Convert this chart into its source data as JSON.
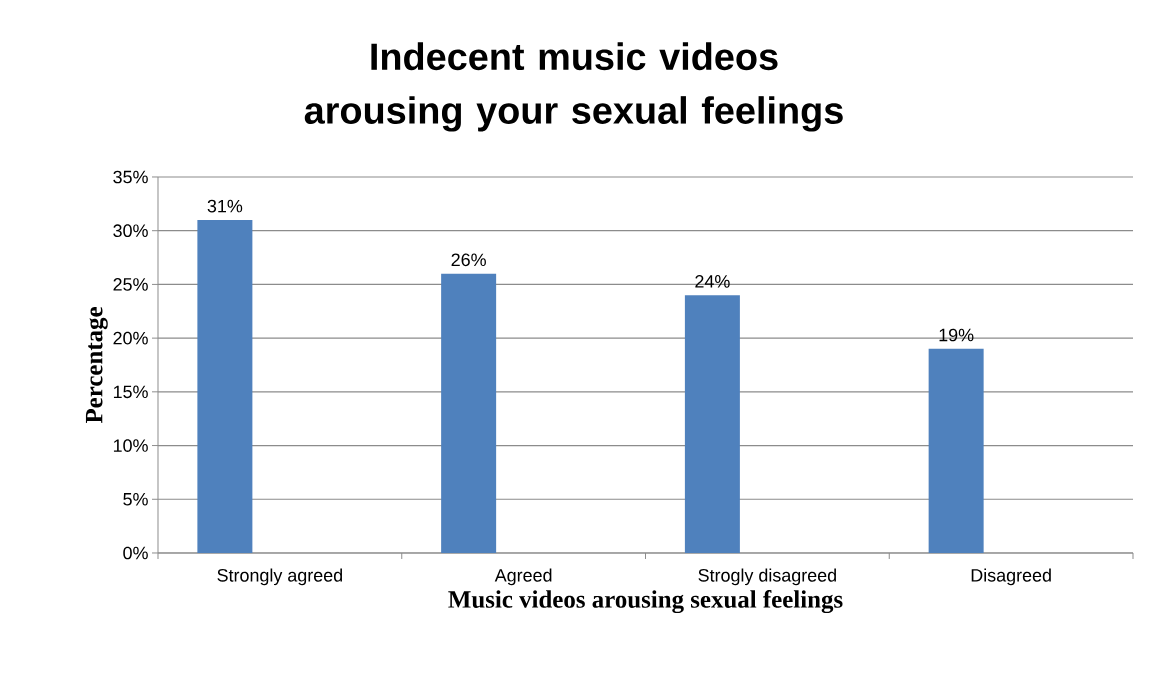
{
  "chart_data": {
    "type": "bar",
    "title": "Indecent music videos arousing your sexual feelings",
    "xlabel": "Music videos arousing sexual feelings",
    "ylabel": "Percentage",
    "categories": [
      "Strongly agreed",
      "Agreed",
      "Strogly disagreed",
      "Disagreed"
    ],
    "values": [
      31,
      26,
      24,
      19
    ],
    "value_labels": [
      "31%",
      "26%",
      "24%",
      "19%"
    ],
    "color": "#4f81bd",
    "ylim": [
      0,
      35
    ],
    "yticks": [
      {
        "value": 0,
        "label": "0%"
      },
      {
        "value": 5,
        "label": "5%"
      },
      {
        "value": 10,
        "label": "10%"
      },
      {
        "value": 15,
        "label": "15%"
      },
      {
        "value": 20,
        "label": "20%"
      },
      {
        "value": 25,
        "label": "25%"
      },
      {
        "value": 30,
        "label": "30%"
      },
      {
        "value": 35,
        "label": "35%"
      }
    ],
    "grid": "y"
  }
}
